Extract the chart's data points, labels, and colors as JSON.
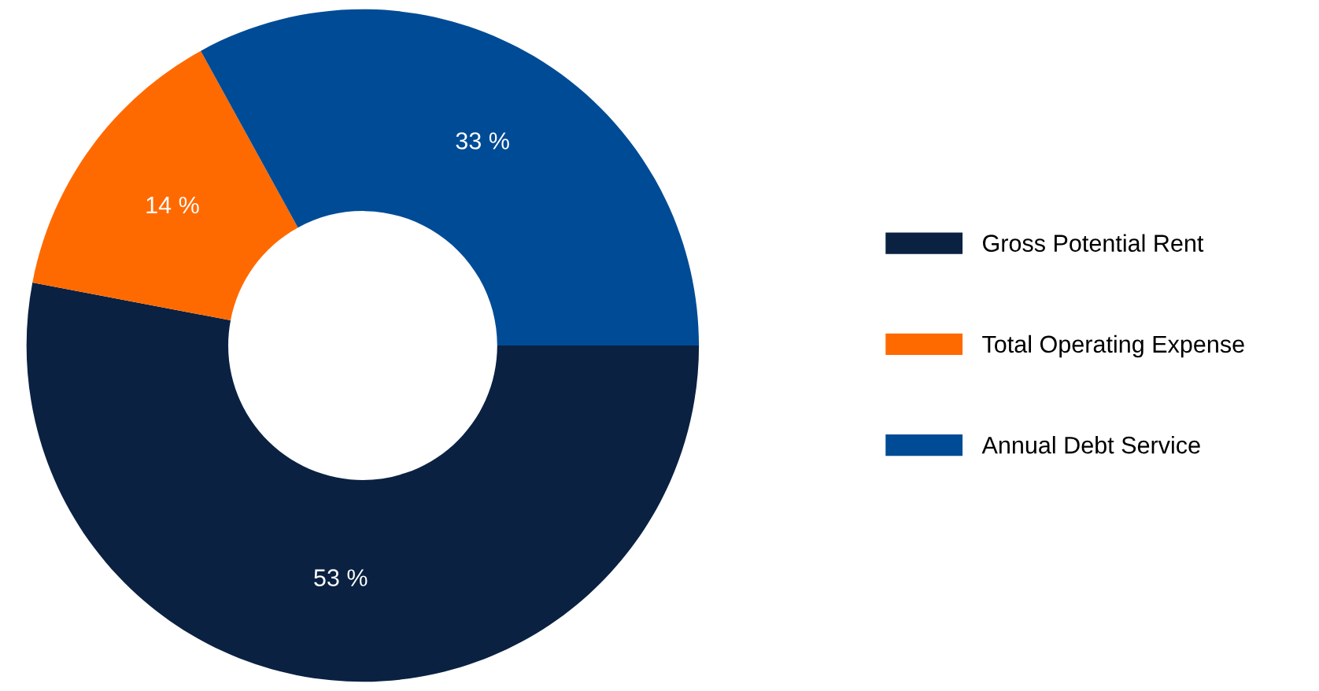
{
  "chart_data": {
    "type": "donut",
    "categories": [
      "Gross Potential Rent",
      "Total Operating Expense",
      "Annual Debt Service"
    ],
    "values": [
      53,
      14,
      33
    ],
    "value_labels": [
      "53 %",
      "14 %",
      "33 %"
    ],
    "colors": [
      "#0a2142",
      "#ff6a00",
      "#004b96"
    ],
    "legend": "right"
  }
}
